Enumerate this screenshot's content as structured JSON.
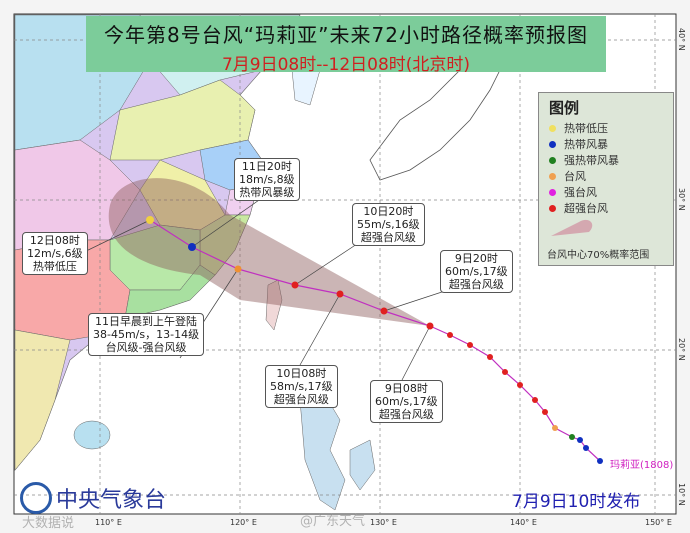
{
  "title": "今年第8号台风“玛莉亚”未来72小时路径概率预报图",
  "subtitle": "7月9日08时--12日08时(北京时)",
  "legend": {
    "title": "图例",
    "items": [
      {
        "label": "热带低压",
        "color": "#f0e060"
      },
      {
        "label": "热带风暴",
        "color": "#1030c0"
      },
      {
        "label": "强热带风暴",
        "color": "#208020"
      },
      {
        "label": "台风",
        "color": "#f0a050"
      },
      {
        "label": "强台风",
        "color": "#e020e0"
      },
      {
        "label": "超强台风",
        "color": "#e02020"
      }
    ],
    "cone_label": "台风中心70%概率范围"
  },
  "labels": {
    "l1": [
      "11日20时",
      "18m/s,8级",
      "热带风暴级"
    ],
    "l2": [
      "12日08时",
      "12m/s,6级",
      "热带低压"
    ],
    "l3": [
      "10日20时",
      "55m/s,16级",
      "超强台风级"
    ],
    "l4": [
      "9日20时",
      "60m/s,17级",
      "超强台风级"
    ],
    "l5": [
      "11日早晨到上午登陆",
      "38-45m/s，13-14级",
      "台风级-强台风级"
    ],
    "l6": [
      "10日08时",
      "58m/s,17级",
      "超强台风级"
    ],
    "l7": [
      "9日08时",
      "60m/s,17级",
      "超强台风级"
    ]
  },
  "storm_name": "玛莉亚(1808)",
  "agency": "中央气象台",
  "issued": "7月9日10时发布",
  "axes": {
    "lon": [
      "110° E",
      "120° E",
      "130° E",
      "140° E",
      "150° E"
    ],
    "lat": [
      "40° N",
      "30° N",
      "20° N",
      "10° N"
    ]
  },
  "watermarks": [
    "大数据说",
    "@广东天气"
  ]
}
